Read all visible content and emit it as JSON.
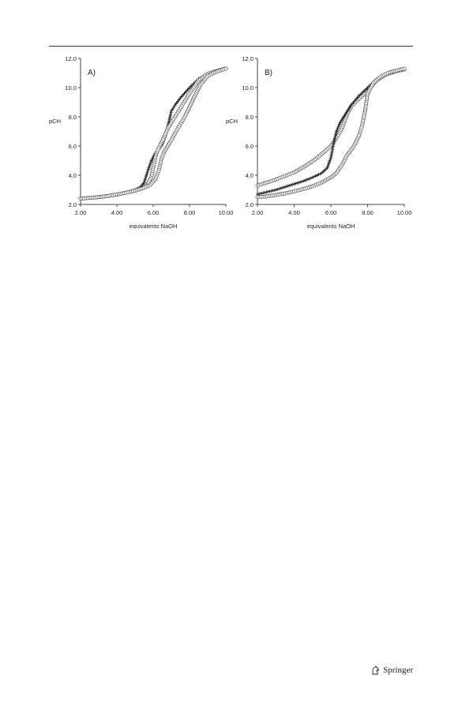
{
  "publisher": {
    "name": "Springer",
    "logo_icon": "springer-horse-icon"
  },
  "chart_data": [
    {
      "type": "scatter",
      "panel_label": "A)",
      "xlabel": "equivalents NaOH",
      "ylabel": "pCH",
      "xlim": [
        2,
        10
      ],
      "ylim": [
        2,
        12
      ],
      "x_ticks": [
        "2.00",
        "4.00",
        "6.00",
        "8.00",
        "10.00"
      ],
      "y_ticks": [
        "2.0",
        "4.0",
        "6.0",
        "8.0",
        "10.0",
        "12.0"
      ],
      "grid": false,
      "series": [
        {
          "marker": "plus",
          "points": [
            [
              2.0,
              2.4
            ],
            [
              2.5,
              2.45
            ],
            [
              3.0,
              2.5
            ],
            [
              3.5,
              2.58
            ],
            [
              4.0,
              2.68
            ],
            [
              4.5,
              2.8
            ],
            [
              5.0,
              3.0
            ],
            [
              5.3,
              3.2
            ],
            [
              5.5,
              3.5
            ],
            [
              5.7,
              4.3
            ],
            [
              5.9,
              5.0
            ],
            [
              6.1,
              5.5
            ],
            [
              6.3,
              5.75
            ],
            [
              6.5,
              6.1
            ],
            [
              6.7,
              6.8
            ],
            [
              6.85,
              7.6
            ],
            [
              7.0,
              8.4
            ],
            [
              7.2,
              8.8
            ],
            [
              7.5,
              9.3
            ],
            [
              8.0,
              10.0
            ],
            [
              8.5,
              10.6
            ],
            [
              9.0,
              10.95
            ],
            [
              9.5,
              11.15
            ],
            [
              10.0,
              11.3
            ]
          ]
        },
        {
          "marker": "circle",
          "points": [
            [
              2.0,
              2.4
            ],
            [
              2.5,
              2.45
            ],
            [
              3.0,
              2.5
            ],
            [
              3.5,
              2.58
            ],
            [
              4.0,
              2.68
            ],
            [
              4.5,
              2.8
            ],
            [
              5.0,
              2.95
            ],
            [
              5.4,
              3.1
            ],
            [
              5.7,
              3.4
            ],
            [
              5.9,
              3.9
            ],
            [
              6.05,
              4.8
            ],
            [
              6.15,
              5.4
            ],
            [
              6.25,
              5.7
            ],
            [
              6.4,
              6.1
            ],
            [
              6.6,
              6.6
            ],
            [
              6.8,
              7.2
            ],
            [
              7.0,
              7.6
            ],
            [
              7.3,
              8.2
            ],
            [
              7.6,
              8.8
            ],
            [
              8.0,
              9.6
            ],
            [
              8.5,
              10.5
            ],
            [
              9.0,
              10.95
            ],
            [
              9.5,
              11.15
            ],
            [
              10.0,
              11.3
            ]
          ]
        },
        {
          "marker": "circle",
          "points": [
            [
              2.0,
              2.4
            ],
            [
              2.5,
              2.45
            ],
            [
              3.0,
              2.5
            ],
            [
              3.5,
              2.58
            ],
            [
              4.0,
              2.68
            ],
            [
              4.5,
              2.8
            ],
            [
              5.0,
              2.95
            ],
            [
              5.4,
              3.1
            ],
            [
              5.8,
              3.3
            ],
            [
              6.1,
              3.7
            ],
            [
              6.3,
              4.3
            ],
            [
              6.45,
              5.1
            ],
            [
              6.6,
              5.6
            ],
            [
              6.8,
              6.0
            ],
            [
              7.0,
              6.4
            ],
            [
              7.3,
              7.1
            ],
            [
              7.6,
              7.7
            ],
            [
              7.9,
              8.4
            ],
            [
              8.2,
              9.2
            ],
            [
              8.6,
              10.2
            ],
            [
              9.0,
              10.8
            ],
            [
              9.5,
              11.1
            ],
            [
              10.0,
              11.3
            ]
          ]
        }
      ]
    },
    {
      "type": "scatter",
      "panel_label": "B)",
      "xlabel": "equivalents NaOH",
      "ylabel": "pCH",
      "xlim": [
        2,
        10
      ],
      "ylim": [
        2,
        12
      ],
      "x_ticks": [
        "2.00",
        "4.00",
        "6.00",
        "8.00",
        "10.00"
      ],
      "y_ticks": [
        "2.0",
        "4.0",
        "6.0",
        "8.0",
        "10.0",
        "12.0"
      ],
      "grid": false,
      "series": [
        {
          "marker": "circle",
          "points": [
            [
              2.0,
              3.3
            ],
            [
              2.5,
              3.5
            ],
            [
              3.0,
              3.7
            ],
            [
              3.5,
              3.95
            ],
            [
              4.0,
              4.2
            ],
            [
              4.5,
              4.55
            ],
            [
              5.0,
              4.95
            ],
            [
              5.5,
              5.45
            ],
            [
              6.0,
              6.0
            ],
            [
              6.3,
              6.55
            ],
            [
              6.6,
              7.2
            ],
            [
              6.9,
              8.2
            ],
            [
              7.1,
              8.7
            ],
            [
              7.5,
              9.2
            ],
            [
              8.0,
              9.8
            ],
            [
              8.5,
              10.5
            ],
            [
              9.0,
              10.9
            ],
            [
              9.5,
              11.1
            ],
            [
              10.0,
              11.25
            ]
          ]
        },
        {
          "marker": "plus",
          "points": [
            [
              2.0,
              2.7
            ],
            [
              2.5,
              2.85
            ],
            [
              3.0,
              3.0
            ],
            [
              3.5,
              3.2
            ],
            [
              4.0,
              3.4
            ],
            [
              4.5,
              3.6
            ],
            [
              5.0,
              3.85
            ],
            [
              5.5,
              4.15
            ],
            [
              5.8,
              4.5
            ],
            [
              6.0,
              5.2
            ],
            [
              6.15,
              6.2
            ],
            [
              6.3,
              7.0
            ],
            [
              6.5,
              7.6
            ],
            [
              6.8,
              8.2
            ],
            [
              7.1,
              8.8
            ],
            [
              7.5,
              9.4
            ],
            [
              8.0,
              10.0
            ],
            [
              8.5,
              10.6
            ],
            [
              9.0,
              10.95
            ],
            [
              9.5,
              11.15
            ],
            [
              10.0,
              11.3
            ]
          ]
        },
        {
          "marker": "circle",
          "points": [
            [
              2.0,
              2.5
            ],
            [
              2.5,
              2.55
            ],
            [
              3.0,
              2.65
            ],
            [
              3.5,
              2.75
            ],
            [
              4.0,
              2.9
            ],
            [
              4.5,
              3.05
            ],
            [
              5.0,
              3.25
            ],
            [
              5.5,
              3.5
            ],
            [
              6.0,
              3.85
            ],
            [
              6.3,
              4.15
            ],
            [
              6.6,
              4.7
            ],
            [
              6.9,
              5.4
            ],
            [
              7.2,
              5.9
            ],
            [
              7.5,
              6.6
            ],
            [
              7.7,
              7.4
            ],
            [
              7.85,
              8.3
            ],
            [
              8.0,
              9.6
            ],
            [
              8.3,
              10.3
            ],
            [
              8.7,
              10.75
            ],
            [
              9.2,
              11.05
            ],
            [
              10.0,
              11.3
            ]
          ]
        }
      ]
    }
  ]
}
